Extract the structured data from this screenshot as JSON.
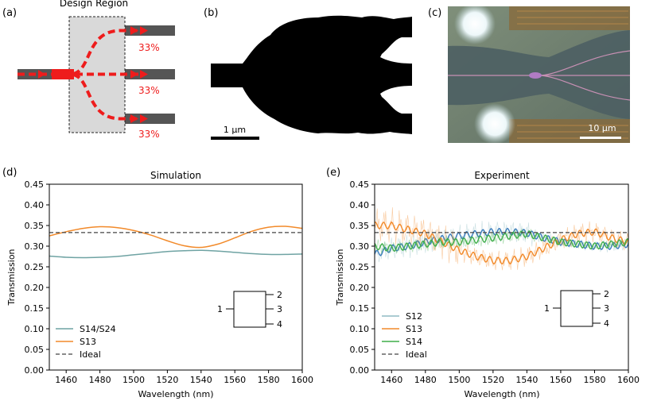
{
  "panels": {
    "a": {
      "label": "(a)",
      "region_label": "Design Region",
      "outputs": [
        "33%",
        "33%",
        "33%"
      ]
    },
    "b": {
      "label": "(b)",
      "scale_label": "1 μm"
    },
    "c": {
      "label": "(c)",
      "scale_label": "10 μm"
    },
    "d": {
      "label": "(d)"
    },
    "e": {
      "label": "(e)"
    }
  },
  "port_box": {
    "input": "1",
    "outputs": [
      "2",
      "3",
      "4"
    ]
  },
  "colors": {
    "teal": "#6fa3a3",
    "orange": "#f28a2a",
    "blue": "#3a7bbd",
    "green": "#3fae49",
    "red": "#ee1c1c",
    "ideal": "#444444"
  },
  "chart_data": [
    {
      "type": "line",
      "title": "Simulation",
      "xlabel": "Wavelength (nm)",
      "ylabel": "Transmission",
      "xlim": [
        1450,
        1600
      ],
      "ylim": [
        0.0,
        0.45
      ],
      "xticks": [
        "1460",
        "1480",
        "1500",
        "1520",
        "1540",
        "1560",
        "1580",
        "1600"
      ],
      "yticks": [
        "0.00",
        "0.05",
        "0.10",
        "0.15",
        "0.20",
        "0.25",
        "0.30",
        "0.35",
        "0.40",
        "0.45"
      ],
      "legend": [
        "S14/S24",
        "S13",
        "Ideal"
      ],
      "series": [
        {
          "name": "S14/S24",
          "x": [
            1450,
            1460,
            1470,
            1480,
            1490,
            1500,
            1510,
            1520,
            1530,
            1540,
            1550,
            1560,
            1570,
            1580,
            1590,
            1600
          ],
          "y": [
            0.276,
            0.273,
            0.272,
            0.273,
            0.275,
            0.279,
            0.283,
            0.287,
            0.289,
            0.29,
            0.288,
            0.285,
            0.282,
            0.28,
            0.28,
            0.281
          ]
        },
        {
          "name": "S13",
          "x": [
            1450,
            1460,
            1470,
            1480,
            1490,
            1500,
            1510,
            1520,
            1530,
            1540,
            1550,
            1560,
            1570,
            1580,
            1590,
            1600
          ],
          "y": [
            0.325,
            0.335,
            0.343,
            0.347,
            0.345,
            0.338,
            0.327,
            0.313,
            0.301,
            0.297,
            0.305,
            0.32,
            0.336,
            0.346,
            0.348,
            0.343
          ]
        },
        {
          "name": "Ideal",
          "style": "dashed",
          "x": [
            1450,
            1600
          ],
          "y": [
            0.333,
            0.333
          ]
        }
      ]
    },
    {
      "type": "line",
      "title": "Experiment",
      "xlabel": "Wavelength (nm)",
      "ylabel": "Transmission",
      "xlim": [
        1450,
        1600
      ],
      "ylim": [
        0.0,
        0.45
      ],
      "xticks": [
        "1460",
        "1480",
        "1500",
        "1520",
        "1540",
        "1560",
        "1580",
        "1600"
      ],
      "yticks": [
        "0.00",
        "0.05",
        "0.10",
        "0.15",
        "0.20",
        "0.25",
        "0.30",
        "0.35",
        "0.40",
        "0.45"
      ],
      "legend": [
        "S12",
        "S13",
        "S14",
        "Ideal"
      ],
      "series": [
        {
          "name": "S12",
          "x": [
            1450,
            1460,
            1470,
            1480,
            1490,
            1500,
            1510,
            1520,
            1530,
            1540,
            1550,
            1560,
            1570,
            1580,
            1590,
            1600
          ],
          "y": [
            0.28,
            0.295,
            0.3,
            0.31,
            0.318,
            0.325,
            0.33,
            0.335,
            0.335,
            0.332,
            0.32,
            0.31,
            0.305,
            0.3,
            0.3,
            0.305
          ]
        },
        {
          "name": "S13",
          "x": [
            1450,
            1460,
            1470,
            1480,
            1490,
            1500,
            1510,
            1520,
            1530,
            1540,
            1550,
            1560,
            1570,
            1580,
            1590,
            1600
          ],
          "y": [
            0.35,
            0.35,
            0.34,
            0.33,
            0.31,
            0.29,
            0.275,
            0.265,
            0.265,
            0.275,
            0.295,
            0.315,
            0.33,
            0.335,
            0.32,
            0.31
          ]
        },
        {
          "name": "S14",
          "x": [
            1450,
            1460,
            1470,
            1480,
            1490,
            1500,
            1510,
            1520,
            1530,
            1540,
            1550,
            1560,
            1570,
            1580,
            1590,
            1600
          ],
          "y": [
            0.3,
            0.295,
            0.3,
            0.305,
            0.31,
            0.31,
            0.315,
            0.32,
            0.325,
            0.33,
            0.32,
            0.31,
            0.305,
            0.3,
            0.305,
            0.31
          ]
        },
        {
          "name": "Ideal",
          "style": "dashed",
          "x": [
            1450,
            1600
          ],
          "y": [
            0.333,
            0.333
          ]
        }
      ]
    }
  ]
}
